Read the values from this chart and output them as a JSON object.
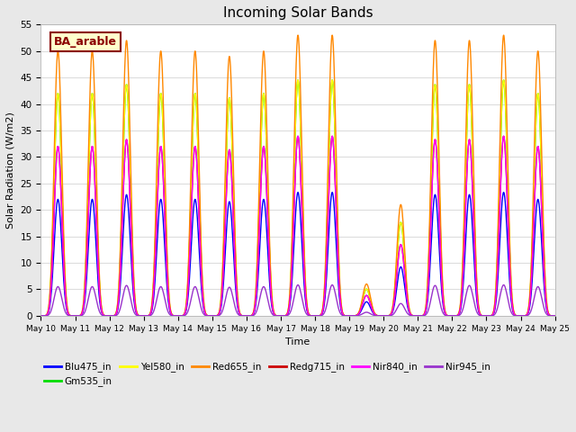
{
  "title": "Incoming Solar Bands",
  "xlabel": "Time",
  "ylabel": "Solar Radiation (W/m2)",
  "annotation": "BA_arable",
  "ylim": [
    0,
    55
  ],
  "n_days": 15,
  "start_day": 10,
  "xtick_labels": [
    "May 10",
    "May 11",
    "May 12",
    "May 13",
    "May 14",
    "May 15",
    "May 16",
    "May 17",
    "May 18",
    "May 19",
    "May 20",
    "May 21",
    "May 22",
    "May 23",
    "May 24",
    "May 25"
  ],
  "series": [
    {
      "name": "Blu475_in",
      "color": "#0000ff",
      "base_peak": 22.0,
      "lw": 1.0
    },
    {
      "name": "Gm535_in",
      "color": "#00dd00",
      "base_peak": 42.0,
      "lw": 1.0
    },
    {
      "name": "Yel580_in",
      "color": "#ffff00",
      "base_peak": 42.0,
      "lw": 1.0
    },
    {
      "name": "Red655_in",
      "color": "#ff8800",
      "base_peak": 50.0,
      "lw": 1.0
    },
    {
      "name": "Redg715_in",
      "color": "#cc0000",
      "base_peak": 32.0,
      "lw": 1.0
    },
    {
      "name": "Nir840_in",
      "color": "#ff00ff",
      "base_peak": 32.0,
      "lw": 1.0
    },
    {
      "name": "Nir945_in",
      "color": "#9933cc",
      "base_peak": 5.5,
      "lw": 1.0
    }
  ],
  "day_factors": [
    1.0,
    1.0,
    1.04,
    1.0,
    1.0,
    0.98,
    1.0,
    1.06,
    1.06,
    0.12,
    0.42,
    1.04,
    1.04,
    1.06,
    1.0
  ],
  "background_color": "#e8e8e8",
  "plot_bg_color": "#ffffff",
  "grid_color": "#dddddd",
  "fig_width": 6.4,
  "fig_height": 4.8,
  "dpi": 100
}
